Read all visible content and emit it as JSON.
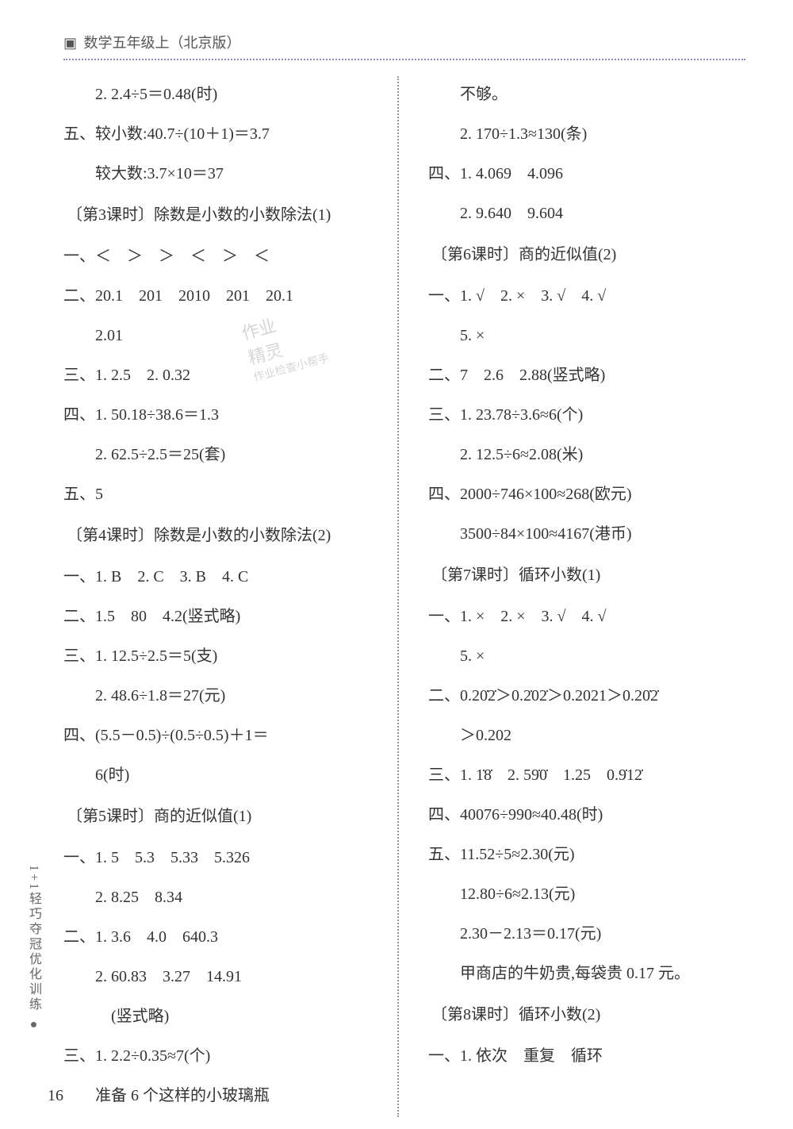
{
  "header": {
    "icon": "▣",
    "title": "数学五年级上（北京版）"
  },
  "page_number": "16",
  "vertical_label": "1+1轻巧夺冠优化训练 ●",
  "watermark": {
    "line1": "作业",
    "line2": "精灵",
    "line3": "作业检查小帮手"
  },
  "left": {
    "l1": "2. 2.4÷5＝0.48(时)",
    "l2": "五、较小数:40.7÷(10＋1)＝3.7",
    "l3": "较大数:3.7×10＝37",
    "lesson3": "〔第3课时〕除数是小数的小数除法(1)",
    "l4": "一、＜　＞　＞　＜　＞　＜",
    "l5": "二、20.1　201　2010　201　20.1",
    "l6": "2.01",
    "l7": "三、1. 2.5　2. 0.32",
    "l8": "四、1. 50.18÷38.6＝1.3",
    "l9": "2. 62.5÷2.5＝25(套)",
    "l10": "五、5",
    "lesson4": "〔第4课时〕除数是小数的小数除法(2)",
    "l11": "一、1. B　2. C　3. B　4. C",
    "l12": "二、1.5　80　4.2(竖式略)",
    "l13": "三、1. 12.5÷2.5＝5(支)",
    "l14": "2. 48.6÷1.8＝27(元)",
    "l15": "四、(5.5－0.5)÷(0.5÷0.5)＋1＝",
    "l16": "6(时)",
    "lesson5": "〔第5课时〕商的近似值(1)",
    "l17": "一、1. 5　5.3　5.33　5.326",
    "l18": "2. 8.25　8.34",
    "l19": "二、1. 3.6　4.0　640.3",
    "l20": "2. 60.83　3.27　14.91",
    "l21": "(竖式略)",
    "l22": "三、1. 2.2÷0.35≈7(个)",
    "l23": "准备 6 个这样的小玻璃瓶"
  },
  "right": {
    "r1": "不够。",
    "r2": "2. 170÷1.3≈130(条)",
    "r3": "四、1. 4.069　4.096",
    "r4": "2. 9.640　9.604",
    "lesson6": "〔第6课时〕商的近似值(2)",
    "r5": "一、1. √　2. ×　3. √　4. √",
    "r6": "5. ×",
    "r7": "二、7　2.6　2.88(竖式略)",
    "r8": "三、1. 23.78÷3.6≈6(个)",
    "r9": "2. 12.5÷6≈2.08(米)",
    "r10": "四、2000÷746×100≈268(欧元)",
    "r11": "3500÷84×100≈4167(港币)",
    "lesson7": "〔第7课时〕循环小数(1)",
    "r12": "一、1. ×　2. ×　3. √　4. √",
    "r13": "5. ×",
    "r14": "二、0.20̇2̇＞0.2̇02̇＞0.2021＞0.20̇2̇",
    "r15": "＞0.202",
    "r16": "三、1. 1̇8̇　2. 59̇0̇　1.25　0.9̇12̇",
    "r17": "四、40076÷990≈40.48(时)",
    "r18": "五、11.52÷5≈2.30(元)",
    "r19": "12.80÷6≈2.13(元)",
    "r20": "2.30－2.13＝0.17(元)",
    "r21": "甲商店的牛奶贵,每袋贵 0.17 元。",
    "lesson8": "〔第8课时〕循环小数(2)",
    "r22": "一、1. 依次　重复　循环"
  }
}
